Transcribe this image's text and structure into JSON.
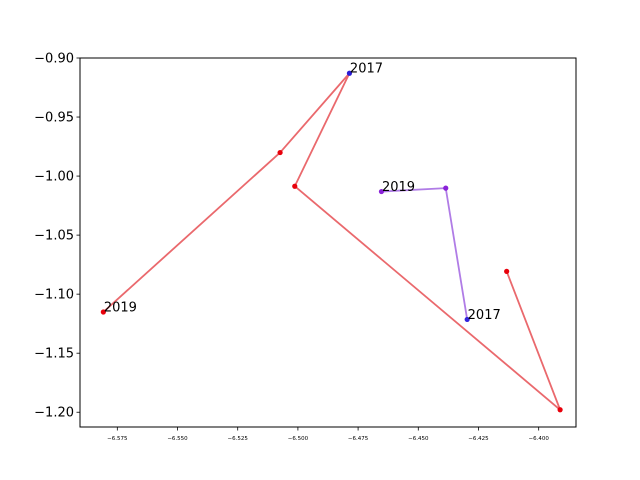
{
  "chart_data": {
    "type": "line",
    "title": "",
    "xlabel": "",
    "ylabel": "",
    "xlim": [
      -6.5905,
      -6.3845
    ],
    "ylim": [
      -1.2125,
      -0.9
    ],
    "grid": false,
    "legend": "none",
    "xticks": [
      -6.575,
      -6.55,
      -6.525,
      -6.5,
      -6.475,
      -6.45,
      -6.425,
      -6.4
    ],
    "xtick_labels": [
      "−6.575",
      "−6.550",
      "−6.525",
      "−6.500",
      "−6.475",
      "−6.450",
      "−6.425",
      "−6.400"
    ],
    "yticks": [
      -0.9,
      -0.95,
      -1.0,
      -1.05,
      -1.1,
      -1.15,
      -1.2
    ],
    "ytick_labels": [
      "−0.90",
      "−0.95",
      "−1.00",
      "−1.05",
      "−1.10",
      "−1.15",
      "−1.20"
    ],
    "series": [
      {
        "color": "#e8595d",
        "line_alpha": 0.9,
        "points": [
          {
            "x": -6.5808,
            "y": -1.1151,
            "label": "2019",
            "color": "#e8000b"
          },
          {
            "x": -6.5074,
            "y": -0.9801,
            "label": "",
            "color": "#e8000b"
          },
          {
            "x": -6.4786,
            "y": -0.9129,
            "label": "2017",
            "color": "#2a1bd7"
          },
          {
            "x": -6.5013,
            "y": -1.0086,
            "label": "",
            "color": "#e8000b"
          },
          {
            "x": -6.3911,
            "y": -1.1979,
            "label": "",
            "color": "#e8000b"
          },
          {
            "x": -6.4133,
            "y": -1.0807,
            "label": "",
            "color": "#e8000b"
          }
        ]
      },
      {
        "color": "#b07ce6",
        "line_alpha": 1.0,
        "points": [
          {
            "x": -6.4653,
            "y": -1.0131,
            "label": "2019",
            "color": "#8a22d8"
          },
          {
            "x": -6.4386,
            "y": -1.0102,
            "label": "",
            "color": "#8a22d8"
          },
          {
            "x": -6.4297,
            "y": -1.1214,
            "label": "2017",
            "color": "#3325dd"
          }
        ]
      }
    ]
  }
}
